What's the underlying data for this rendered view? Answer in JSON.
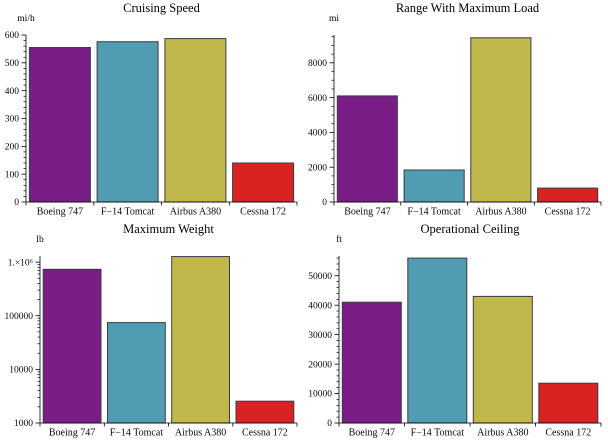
{
  "page": {
    "background": "#ffffff",
    "description_labels": {
      "categories_note": "aircraft comparison bar charts"
    }
  },
  "bar_colors": [
    "#7A1D87",
    "#509CB3",
    "#C1B84C",
    "#D92323"
  ],
  "bar_stroke": "#3B3B43",
  "axis_color": "#000000",
  "chart_data": [
    {
      "type": "bar",
      "title": "Cruising Speed",
      "ylabel": "mi/h",
      "xlabel": "",
      "scale": "linear",
      "ylim": [
        0,
        600
      ],
      "categories": [
        "Boeing 747",
        "F−14 Tomcat",
        "Airbus A380",
        "Cessna 172"
      ],
      "values": [
        555,
        576,
        587,
        140
      ],
      "major_ticks": [
        0,
        100,
        200,
        300,
        400,
        500,
        600
      ],
      "major_labels": [
        "0",
        "100",
        "200",
        "300",
        "400",
        "500",
        "600"
      ],
      "minor_step": 20,
      "grid": false,
      "legend": "none"
    },
    {
      "type": "bar",
      "title": "Range With Maximum Load",
      "ylabel": "mi",
      "xlabel": "",
      "scale": "linear",
      "ylim": [
        0,
        9600
      ],
      "categories": [
        "Boeing 747",
        "F−14 Tomcat",
        "Airbus A380",
        "Cessna 172"
      ],
      "values": [
        6100,
        1840,
        9440,
        800
      ],
      "major_ticks": [
        0,
        2000,
        4000,
        6000,
        8000
      ],
      "major_labels": [
        "0",
        "2000",
        "4000",
        "6000",
        "8000"
      ],
      "minor_step": 500,
      "grid": false,
      "legend": "none"
    },
    {
      "type": "bar",
      "title": "Maximum Weight",
      "ylabel": "lb",
      "xlabel": "",
      "scale": "log",
      "ylim": [
        1000,
        1300000
      ],
      "categories": [
        "Boeing 747",
        "F−14 Tomcat",
        "Airbus A380",
        "Cessna 172"
      ],
      "values": [
        735000,
        74350,
        1268000,
        2550
      ],
      "major_ticks": [
        1000,
        10000,
        100000,
        1000000
      ],
      "major_labels": [
        "1000",
        "10000",
        "100000",
        "1.×10⁶"
      ],
      "grid": false,
      "legend": "none"
    },
    {
      "type": "bar",
      "title": "Operational Ceiling",
      "ylabel": "ft",
      "xlabel": "",
      "scale": "linear",
      "ylim": [
        0,
        56700
      ],
      "categories": [
        "Boeing 747",
        "F−14 Tomcat",
        "Airbus A380",
        "Cessna 172"
      ],
      "values": [
        41000,
        56000,
        43000,
        13500
      ],
      "major_ticks": [
        0,
        10000,
        20000,
        30000,
        40000,
        50000
      ],
      "major_labels": [
        "0",
        "10000",
        "20000",
        "30000",
        "40000",
        "50000"
      ],
      "minor_step": 2000,
      "grid": false,
      "legend": "none"
    }
  ]
}
